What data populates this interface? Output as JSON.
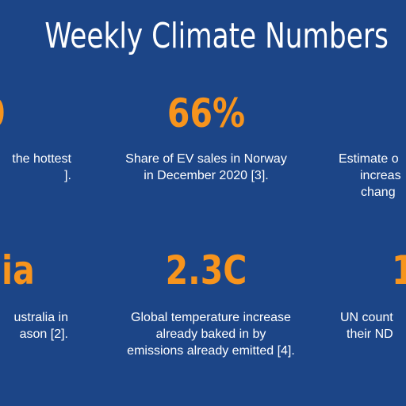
{
  "title": "Weekly Climate Numbers",
  "accent_color": "#f7941d",
  "background_color": "#1c4587",
  "cards": [
    {
      "id": "top-left",
      "stat": "0",
      "caption_lines": [
        "the hottest",
        "]."
      ]
    },
    {
      "id": "top-center",
      "stat": "66%",
      "caption_lines": [
        "Share of EV sales in Norway",
        "in December 2020 [3]."
      ]
    },
    {
      "id": "top-right",
      "stat": "",
      "caption_lines": [
        "Estimate o",
        "increas",
        "chang"
      ]
    },
    {
      "id": "bottom-left",
      "stat": "lia",
      "caption_lines": [
        "ustralia in",
        "ason [2]."
      ]
    },
    {
      "id": "bottom-center",
      "stat": "2.3C",
      "caption_lines": [
        "Global temperature increase",
        "already baked in by",
        "emissions already emitted [4]."
      ]
    },
    {
      "id": "bottom-right",
      "stat": "1",
      "caption_lines": [
        "UN count",
        "their ND"
      ]
    }
  ]
}
